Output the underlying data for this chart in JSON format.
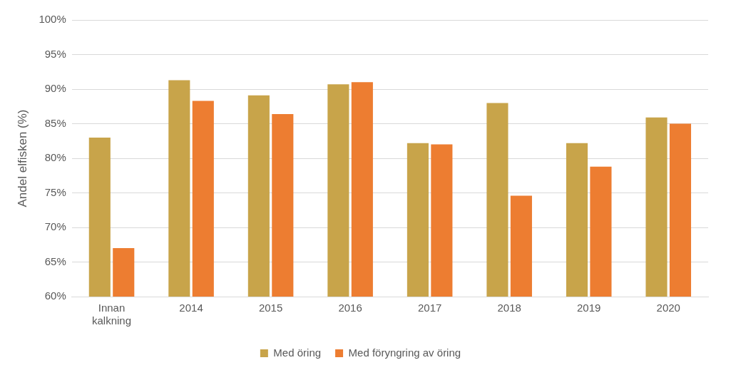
{
  "chart_data": {
    "type": "bar",
    "ylabel": "Andel elfisken (%)",
    "categories": [
      "Innan kalkning",
      "2014",
      "2015",
      "2016",
      "2017",
      "2018",
      "2019",
      "2020"
    ],
    "series": [
      {
        "name": "Med öring",
        "color": "#c8a44a",
        "values": [
          83.0,
          91.3,
          89.1,
          90.7,
          82.2,
          88.0,
          82.2,
          85.9
        ]
      },
      {
        "name": "Med föryngring av öring",
        "color": "#ed7d31",
        "values": [
          67.0,
          88.3,
          86.4,
          91.0,
          82.0,
          74.6,
          78.8,
          85.0
        ]
      }
    ],
    "ylim": [
      60,
      100
    ],
    "yticks": [
      {
        "value": 60,
        "label": "60%"
      },
      {
        "value": 65,
        "label": "65%"
      },
      {
        "value": 70,
        "label": "70%"
      },
      {
        "value": 75,
        "label": "75%"
      },
      {
        "value": 80,
        "label": "80%"
      },
      {
        "value": 85,
        "label": "85%"
      },
      {
        "value": 90,
        "label": "90%"
      },
      {
        "value": 95,
        "label": "95%"
      },
      {
        "value": 100,
        "label": "100%"
      }
    ],
    "grid": "y",
    "legend": "bottom"
  }
}
